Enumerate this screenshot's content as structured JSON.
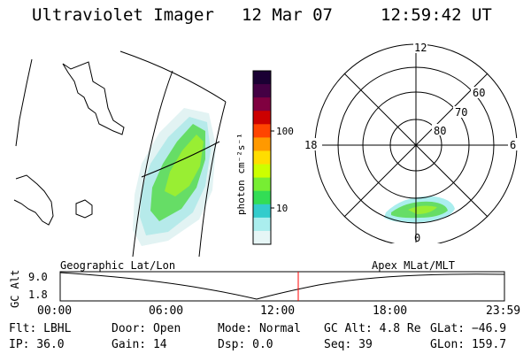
{
  "header": {
    "instrument": "Ultraviolet Imager",
    "date": "12 Mar 07",
    "time": "12:59:42 UT"
  },
  "colorbar": {
    "label": "photon cm⁻²s⁻¹",
    "ticks": [
      "100",
      "10"
    ],
    "colors": [
      "#1a0033",
      "#440044",
      "#800040",
      "#cc0000",
      "#ff4400",
      "#ff9900",
      "#ffdd00",
      "#ccff00",
      "#77ee33",
      "#33dd55",
      "#33cccc",
      "#aaeeee",
      "#e6f6f6"
    ]
  },
  "polar": {
    "mlt_labels": [
      "12",
      "18",
      "6",
      "0"
    ],
    "lat_labels": [
      "60",
      "70",
      "80"
    ]
  },
  "timeline": {
    "left_title": "Geographic Lat/Lon",
    "right_title": "Apex MLat/MLT",
    "ylabel": "GC Alt",
    "y_ticks": [
      "9.0",
      "1.8"
    ],
    "x_ticks": [
      "00:00",
      "06:00",
      "12:00",
      "18:00",
      "23:59"
    ],
    "current_marker_color": "#ff0000"
  },
  "status": {
    "flt": "Flt: LBHL",
    "ip": "IP: 36.0",
    "door": "Door: Open",
    "gain": "Gain: 14",
    "mode": "Mode: Normal",
    "dsp": "Dsp:    0.0",
    "gc_alt": "GC Alt: 4.8 Re",
    "seq": "Seq: 39",
    "glat": "GLat: −46.9",
    "glon": "GLon: 159.7"
  }
}
